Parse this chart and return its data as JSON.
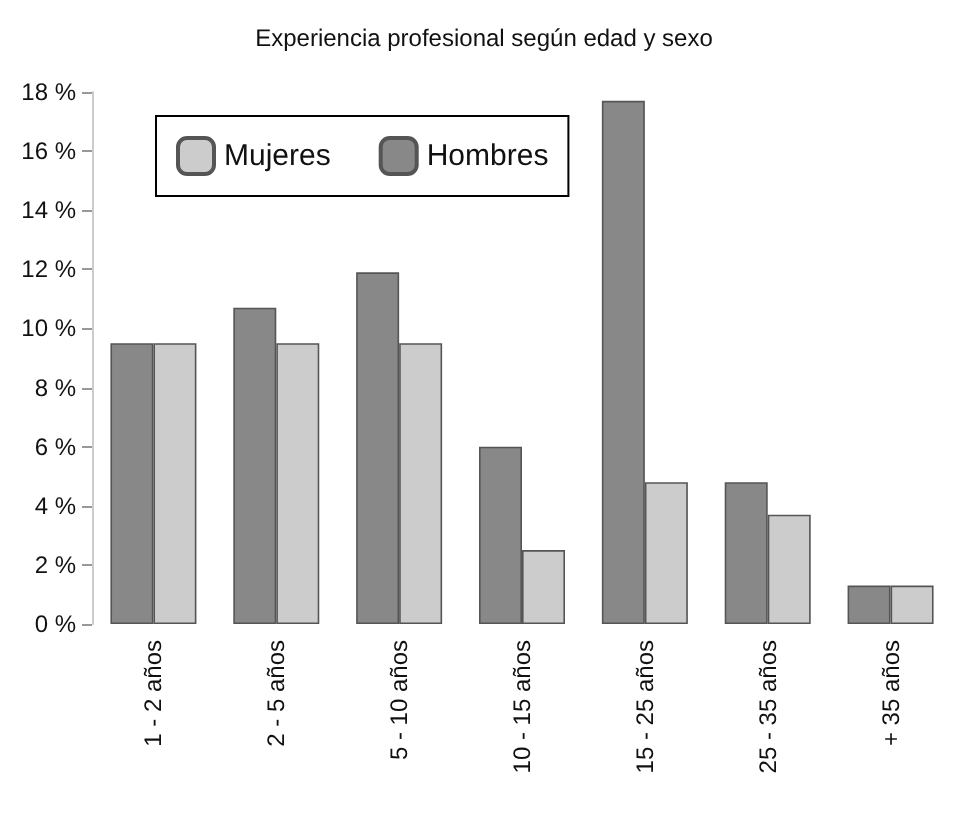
{
  "chart_data": {
    "type": "bar",
    "title": "Experiencia profesional según edad y sexo",
    "categories": [
      "1 - 2 años",
      "2 - 5 años",
      "5 - 10 años",
      "10 - 15 años",
      "15 - 25 años",
      "25 - 35 años",
      "+ 35 años"
    ],
    "series": [
      {
        "name": "Hombres",
        "color": "#888888",
        "values": [
          9.5,
          10.7,
          11.9,
          6.0,
          17.7,
          4.8,
          1.3
        ]
      },
      {
        "name": "Mujeres",
        "color": "#cccccc",
        "values": [
          9.5,
          9.5,
          9.5,
          2.5,
          4.8,
          3.7,
          1.3
        ]
      }
    ],
    "ylim": [
      0,
      18
    ],
    "yticks": [
      {
        "value": 0,
        "label": "0 %"
      },
      {
        "value": 2,
        "label": "2 %"
      },
      {
        "value": 4,
        "label": "4 %"
      },
      {
        "value": 6,
        "label": "6 %"
      },
      {
        "value": 8,
        "label": "8 %"
      },
      {
        "value": 10,
        "label": "10 %"
      },
      {
        "value": 12,
        "label": "12 %"
      },
      {
        "value": 14,
        "label": "14 %"
      },
      {
        "value": 16,
        "label": "16 %"
      },
      {
        "value": 18,
        "label": "18 %"
      }
    ],
    "grid": false,
    "legend": "top left"
  }
}
